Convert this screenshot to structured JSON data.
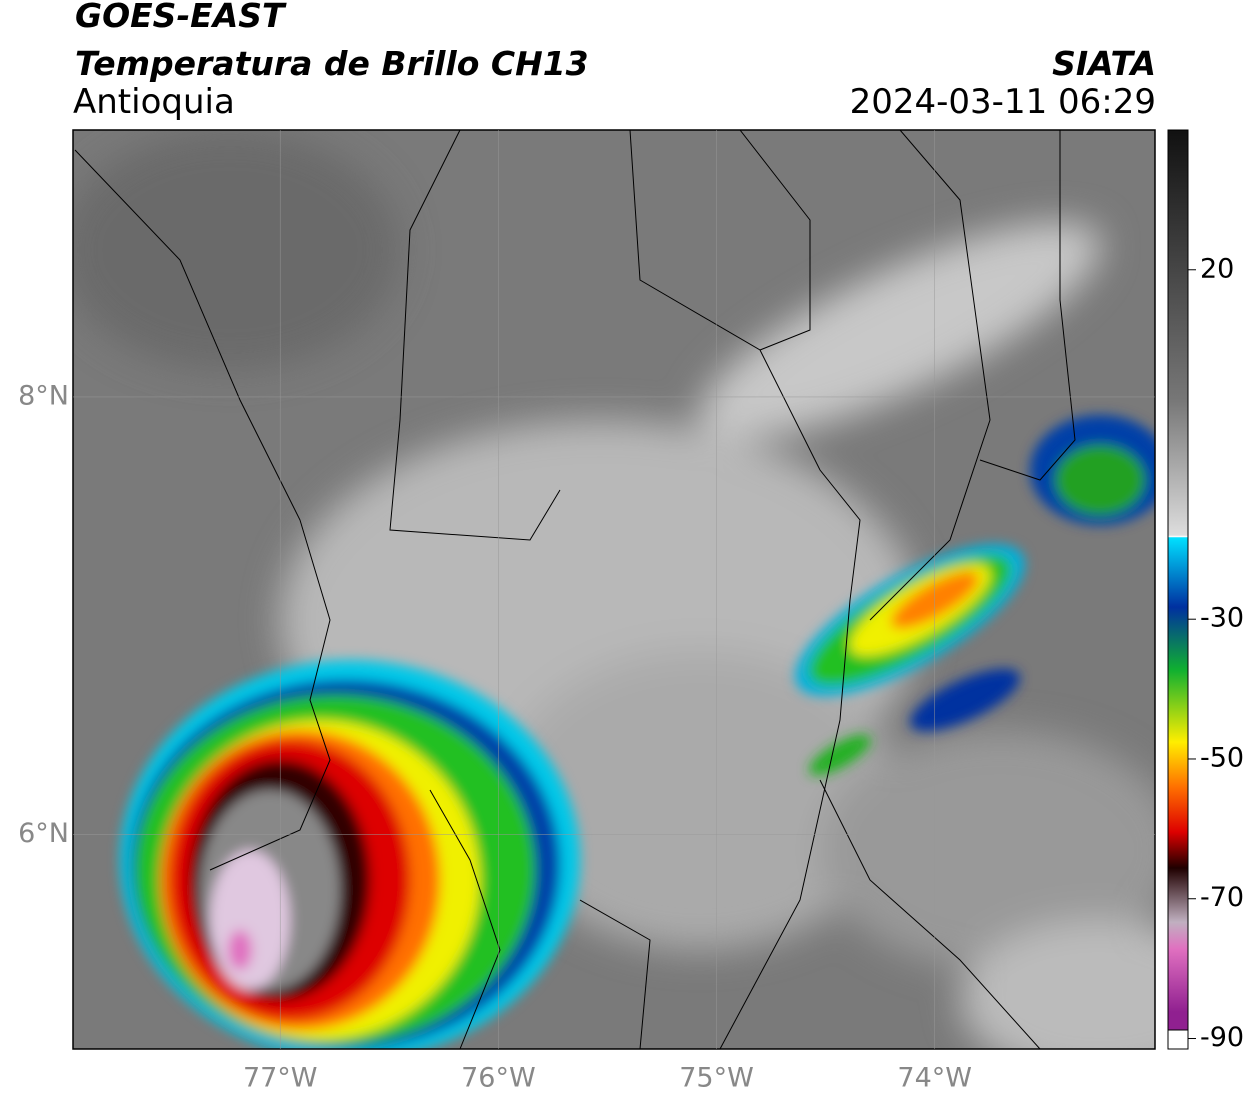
{
  "header": {
    "title": "GOES-EAST",
    "subtitle": "Temperatura de Brillo CH13",
    "region": "Antioquia",
    "source": "SIATA",
    "datetime": "2024-03-11 06:29"
  },
  "map": {
    "lon_range": [
      -77.95,
      -72.99
    ],
    "lat_range": [
      5.02,
      9.22
    ],
    "lat_ticks": [
      {
        "value": 8,
        "label": "8°N"
      },
      {
        "value": 6,
        "label": "6°N"
      }
    ],
    "lon_ticks": [
      {
        "value": -77,
        "label": "77°W"
      },
      {
        "value": -76,
        "label": "76°W"
      },
      {
        "value": -75,
        "label": "75°W"
      },
      {
        "value": -74,
        "label": "74°W"
      }
    ]
  },
  "colorbar": {
    "range": [
      -91.5,
      40
    ],
    "ticks": [
      20,
      -30,
      -50,
      -70,
      -90
    ]
  }
}
